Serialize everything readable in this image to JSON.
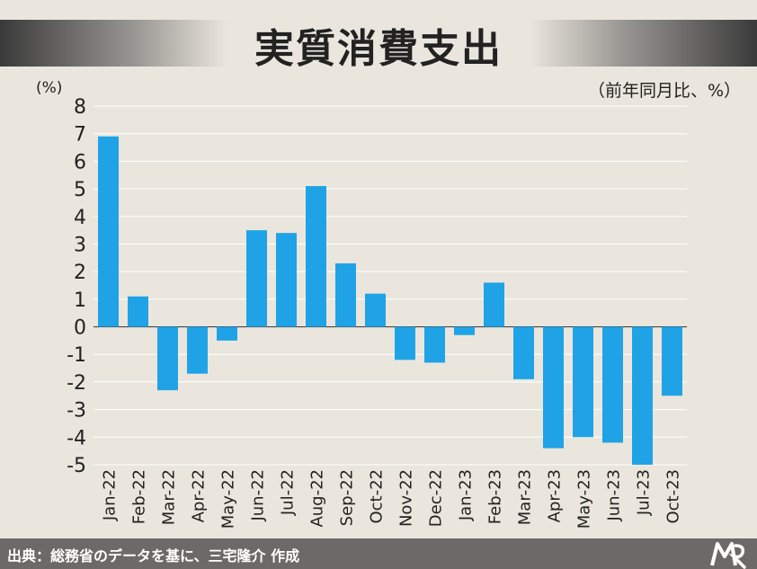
{
  "title": "実質消費支出",
  "unit_left": "(%)",
  "unit_right": "（前年同月比、%）",
  "source": "出典：総務省のデータを基に、三宅隆介 作成",
  "colors": {
    "bar": "#1fa3e6",
    "background": "#eae6dd",
    "footer": "#6b6a68"
  },
  "logo_icon": "mr-logo-icon",
  "chart_data": {
    "type": "bar",
    "title": "実質消費支出",
    "ylabel": "(%)",
    "ylim": [
      -5,
      8
    ],
    "yticks": [
      8,
      7,
      6,
      5,
      4,
      3,
      2,
      1,
      0,
      -1,
      -2,
      -3,
      -4,
      -5
    ],
    "grid": true,
    "categories": [
      "Jan-22",
      "Feb-22",
      "Mar-22",
      "Apr-22",
      "May-22",
      "Jun-22",
      "Jul-22",
      "Aug-22",
      "Sep-22",
      "Oct-22",
      "Nov-22",
      "Dec-22",
      "Jan-23",
      "Feb-23",
      "Mar-23",
      "Apr-23",
      "May-23",
      "Jun-23",
      "Jul-23",
      "Oct-23"
    ],
    "values": [
      6.9,
      1.1,
      -2.3,
      -1.7,
      -0.5,
      3.5,
      3.4,
      5.1,
      2.3,
      1.2,
      -1.2,
      -1.3,
      -0.3,
      1.6,
      -1.9,
      -4.4,
      -4.0,
      -4.2,
      -5.0,
      -2.5
    ]
  }
}
